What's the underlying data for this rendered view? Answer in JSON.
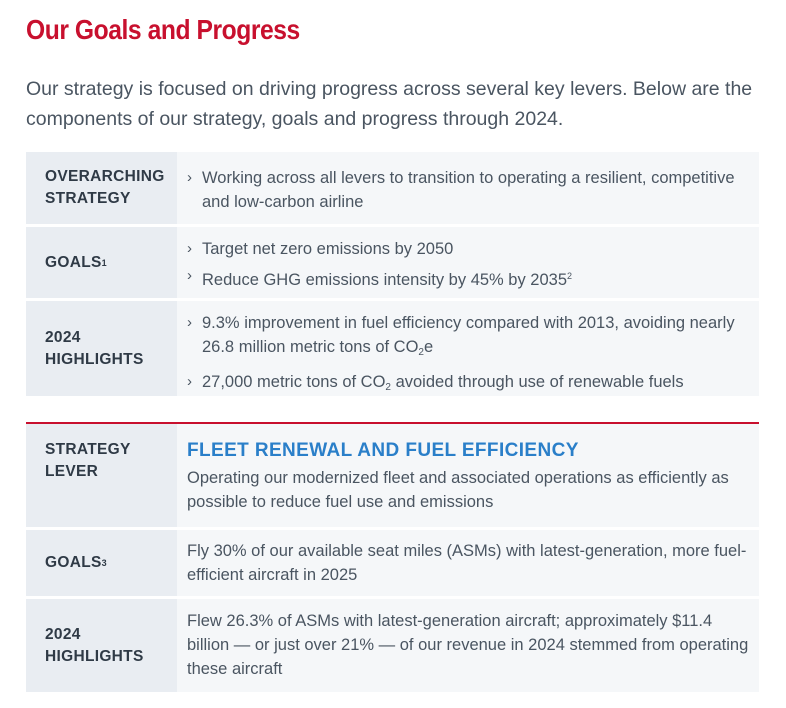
{
  "page": {
    "title": "Our Goals and Progress",
    "intro": "Our strategy is focused on driving progress across several key levers. Below are the components of our strategy, goals and progress through 2024."
  },
  "table1": {
    "overarching_label": "OVERARCHING STRATEGY",
    "overarching_text": "Working across all levers to transition to operating a resilient, competitive and low-carbon airline",
    "goals_label": "GOALS",
    "goals_sup": "1",
    "goal_1": "Target net zero emissions by 2050",
    "goal_2": "Reduce GHG emissions intensity by 45% by 2035",
    "goal_2_sup": "2",
    "highlights_label": "2024 HIGHLIGHTS",
    "highlight_1_a": "9.3% improvement in fuel efficiency compared with 2013, avoiding nearly 26.8 million metric tons of CO",
    "highlight_1_sub": "2",
    "highlight_1_b": "e",
    "highlight_2_a": "27,000 metric tons of CO",
    "highlight_2_sub": "2",
    "highlight_2_b": " avoided through use of renewable fuels"
  },
  "table2": {
    "lever_label": "STRATEGY LEVER",
    "lever_title": "FLEET RENEWAL AND FUEL EFFICIENCY",
    "lever_text": "Operating our modernized fleet and associated operations as efficiently as possible to reduce fuel use and emissions",
    "goals_label": "GOALS",
    "goals_sup": "3",
    "goals_text": "Fly 30% of our available seat miles (ASMs) with latest-generation, more fuel-efficient aircraft in 2025",
    "highlights_label": "2024 HIGHLIGHTS",
    "highlights_text": "Flew 26.3% of ASMs with latest-generation aircraft; approximately $11.4 billion — or just over 21% — of our revenue in 2024 stemmed from operating these aircraft"
  },
  "icons": {
    "bullet": "chevron-right-icon"
  },
  "colors": {
    "accent_red": "#c8102e",
    "lever_blue": "#2a7fc9",
    "label_bg": "#e9edf2",
    "cell_bg": "#f5f7f9"
  }
}
